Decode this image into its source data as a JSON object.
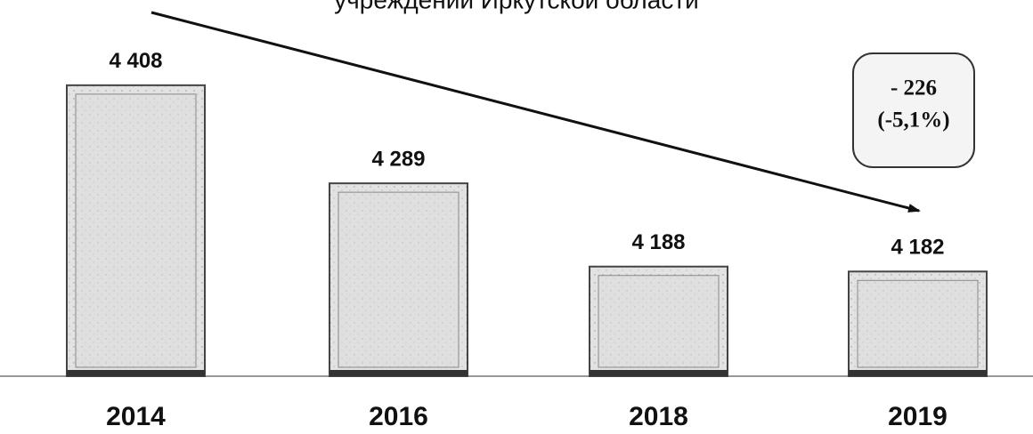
{
  "chart_data": {
    "type": "bar",
    "title": "учреждений Иркутской области",
    "categories": [
      "2014",
      "2016",
      "2018",
      "2019"
    ],
    "values": [
      4408,
      4289,
      4188,
      4182
    ],
    "value_labels": [
      "4 408",
      "4 289",
      "4 188",
      "4 182"
    ],
    "color": "#dcdcdc",
    "ylim": [
      4055,
      4410
    ],
    "annotations": [
      "- 226",
      "(-5,1%)"
    ]
  }
}
